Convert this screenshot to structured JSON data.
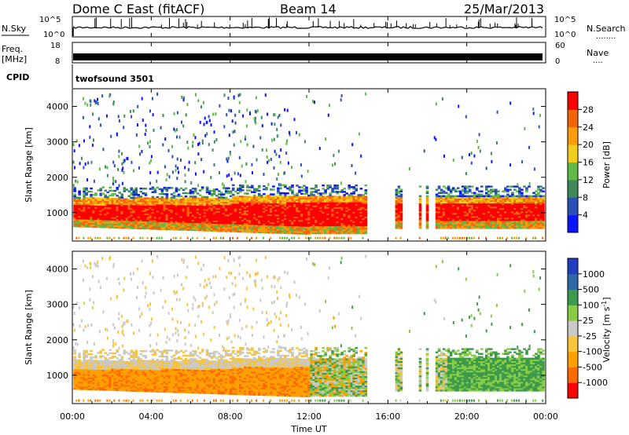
{
  "header": {
    "station": "Dome C East (fitACF)",
    "beam": "Beam 14",
    "date": "25/Mar/2013"
  },
  "top_panels": {
    "nsky_label": "N.Sky",
    "nsearch_label": "N.Search",
    "nsearch_dots": "........",
    "freq_label_1": "Freq.",
    "freq_label_2": "[MHz]",
    "nave_label": "Nave",
    "nave_dots": "....",
    "cpid_label": "CPID",
    "cpid_value": "twofsound 3501",
    "noise_ticks": [
      "10^5",
      "10^0"
    ],
    "freq_ticks": [
      "18",
      "8"
    ],
    "nave_ticks": [
      "60",
      "0"
    ]
  },
  "colors": {
    "power_scale": [
      "#0a14ff",
      "#2a4fb8",
      "#3e8a5a",
      "#5fba45",
      "#f0ce1a",
      "#fb9c0c",
      "#f4650a",
      "#ff0000"
    ],
    "velocity_scale": [
      "#ff0000",
      "#ff6a00",
      "#ff9f00",
      "#f8c43a",
      "#c9c9c9",
      "#88cc44",
      "#3c9a4c",
      "#2f6aa8",
      "#1f3ec0"
    ]
  },
  "chart_data": [
    {
      "type": "heatmap",
      "name": "power",
      "ylabel": "Slant Range [km]",
      "yticks": [
        "4000",
        "3000",
        "2000",
        "1000"
      ],
      "y_values": [
        4000,
        3000,
        2000,
        1000
      ],
      "ylim": [
        200,
        4500
      ],
      "xlim": [
        0,
        24
      ],
      "colorbar_label": "Power [dB]",
      "colorbar_ticks": [
        "28",
        "24",
        "20",
        "16",
        "12",
        "8",
        "4"
      ],
      "colorbar_range": [
        0,
        32
      ]
    },
    {
      "type": "heatmap",
      "name": "velocity",
      "ylabel": "Slant Range [km]",
      "yticks": [
        "4000",
        "3000",
        "2000",
        "1000"
      ],
      "y_values": [
        4000,
        3000,
        2000,
        1000
      ],
      "ylim": [
        200,
        4500
      ],
      "xlim": [
        0,
        24
      ],
      "colorbar_label": "Velocity [m s",
      "colorbar_label_sup": "-1",
      "colorbar_label_end": "]",
      "colorbar_ticks": [
        "1000",
        "500",
        "100",
        "25",
        "-25",
        "-100",
        "-500",
        "-1000"
      ],
      "xticks": [
        "00:00",
        "04:00",
        "08:00",
        "12:00",
        "16:00",
        "20:00",
        "00:00"
      ],
      "x_values": [
        0,
        4,
        8,
        12,
        16,
        20,
        24
      ],
      "xlabel": "Time UT"
    }
  ]
}
